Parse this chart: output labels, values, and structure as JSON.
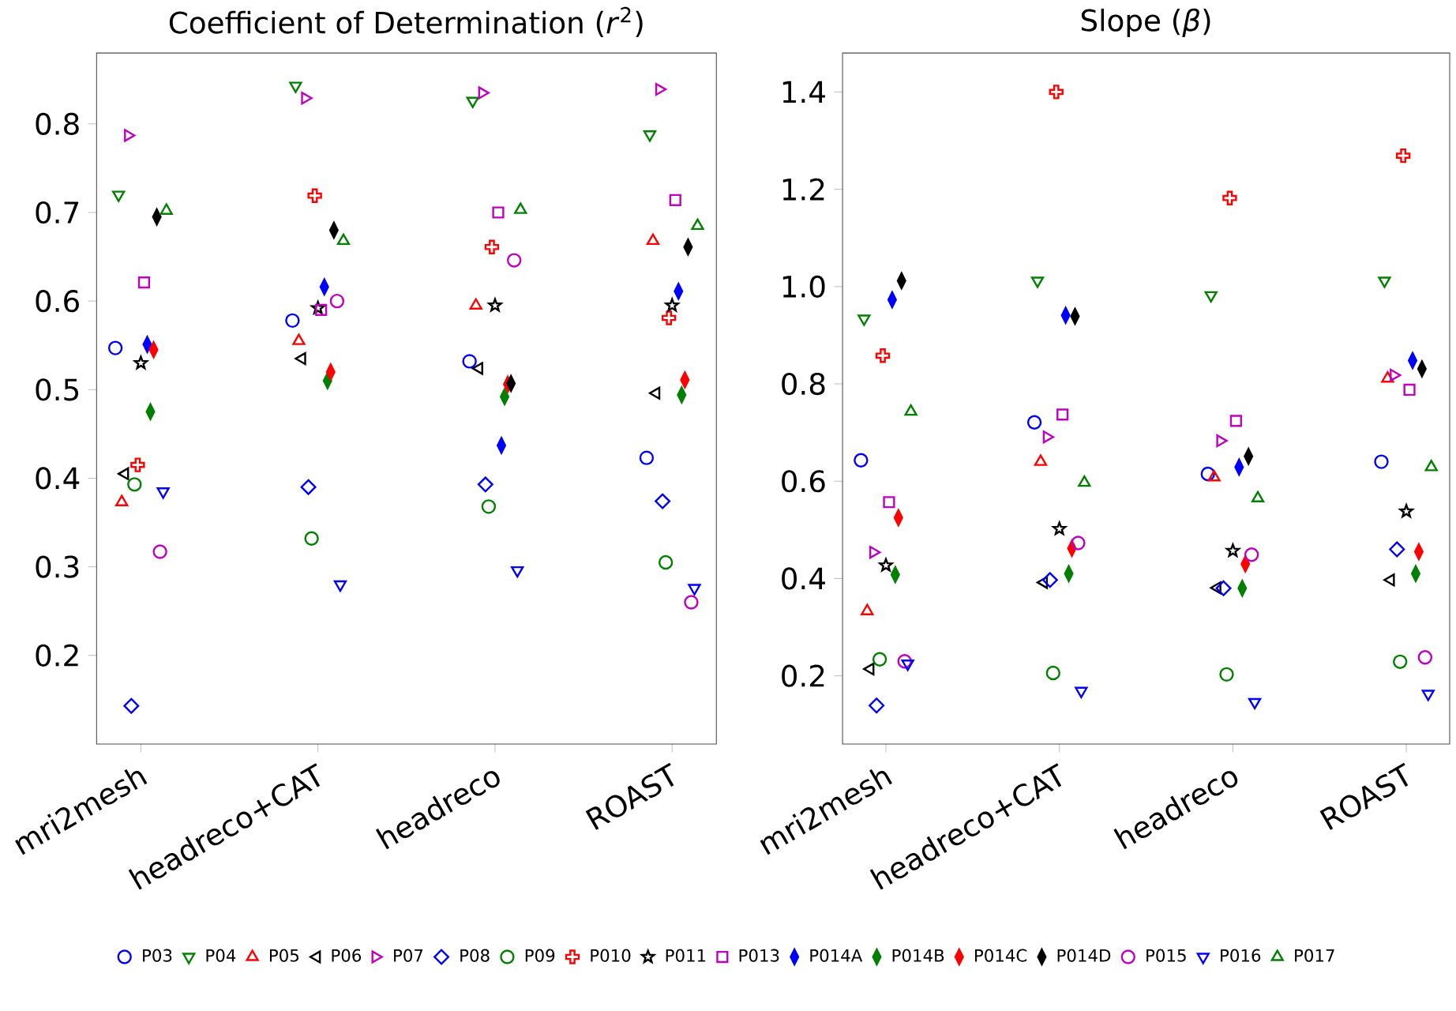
{
  "chart_data": [
    {
      "type": "scatter",
      "title": "Coefficient of Determination (*r*$^{2}$)",
      "categories": [
        "mri2mesh",
        "headreco+CAT",
        "headreco",
        "ROAST"
      ],
      "ylim": [
        0.1,
        0.88
      ],
      "yticks": [
        0.2,
        0.3,
        0.4,
        0.5,
        0.6,
        0.7,
        0.8
      ],
      "legend": "bottom",
      "series": [
        {
          "name": "P03",
          "color": "#0000ff",
          "marker": "circle",
          "values": [
            0.547,
            0.578,
            0.532,
            0.423
          ]
        },
        {
          "name": "P04",
          "color": "#008000",
          "marker": "triangle",
          "values": [
            0.72,
            0.843,
            0.826,
            0.788
          ]
        },
        {
          "name": "P05",
          "color": "#ff0000",
          "marker": "triangle",
          "values": [
            0.373,
            0.555,
            0.595,
            0.668
          ]
        },
        {
          "name": "P06",
          "color": "#000000",
          "marker": "triangle",
          "values": [
            0.405,
            0.535,
            0.524,
            0.496
          ]
        },
        {
          "name": "P07",
          "color": "#bf00bf",
          "marker": "triangle",
          "values": [
            0.787,
            0.829,
            0.835,
            0.839
          ]
        },
        {
          "name": "P08",
          "color": "#0000ff",
          "marker": "diamond",
          "values": [
            0.143,
            0.39,
            0.393,
            0.374
          ]
        },
        {
          "name": "P09",
          "color": "#008000",
          "marker": "circle",
          "values": [
            0.393,
            0.332,
            0.368,
            0.305
          ]
        },
        {
          "name": "P010",
          "color": "#ff0000",
          "marker": "cross",
          "values": [
            0.415,
            0.719,
            0.661,
            0.581
          ]
        },
        {
          "name": "P011",
          "color": "#000000",
          "marker": "star",
          "values": [
            0.53,
            0.592,
            0.595,
            0.595
          ]
        },
        {
          "name": "P013",
          "color": "#bf00bf",
          "marker": "square",
          "values": [
            0.621,
            0.59,
            0.7,
            0.714
          ]
        },
        {
          "name": "P014A",
          "color": "#0000ff",
          "marker": "diamond",
          "values": [
            0.551,
            0.616,
            0.437,
            0.611
          ]
        },
        {
          "name": "P014B",
          "color": "#008000",
          "marker": "diamond",
          "values": [
            0.475,
            0.51,
            0.492,
            0.494
          ]
        },
        {
          "name": "P014C",
          "color": "#ff0000",
          "marker": "diamond",
          "values": [
            0.545,
            0.52,
            0.506,
            0.511
          ]
        },
        {
          "name": "P014D",
          "color": "#000000",
          "marker": "diamond",
          "values": [
            0.695,
            0.68,
            0.507,
            0.661
          ]
        },
        {
          "name": "P015",
          "color": "#bf00bf",
          "marker": "circle",
          "values": [
            0.317,
            0.6,
            0.646,
            0.26
          ]
        },
        {
          "name": "P016",
          "color": "#0000ff",
          "marker": "triangle",
          "values": [
            0.385,
            0.28,
            0.296,
            0.276
          ]
        },
        {
          "name": "P017",
          "color": "#008000",
          "marker": "triangle",
          "values": [
            0.702,
            0.668,
            0.703,
            0.685
          ]
        }
      ]
    },
    {
      "type": "scatter",
      "title": "Slope (*β*)",
      "categories": [
        "mri2mesh",
        "headreco+CAT",
        "headreco",
        "ROAST"
      ],
      "ylim": [
        0.06,
        1.48
      ],
      "yticks": [
        0.2,
        0.4,
        0.6,
        0.8,
        {
          "value": 1,
          "label": "1.0"
        },
        1.2,
        1.4
      ],
      "series": [
        {
          "color": "#0000ff",
          "marker": "circle",
          "values": [
            0.643,
            0.721,
            0.615,
            0.64
          ]
        },
        {
          "color": "#008000",
          "marker": "triangle",
          "values": [
            0.934,
            1.012,
            0.982,
            1.012
          ]
        },
        {
          "color": "#ff0000",
          "marker": "triangle",
          "values": [
            0.333,
            0.64,
            0.608,
            0.811
          ]
        },
        {
          "color": "#000000",
          "marker": "triangle",
          "values": [
            0.214,
            0.392,
            0.381,
            0.397
          ]
        },
        {
          "color": "#bf00bf",
          "marker": "triangle",
          "values": [
            0.454,
            0.691,
            0.683,
            0.818
          ]
        },
        {
          "color": "#0000ff",
          "marker": "diamond",
          "values": [
            0.139,
            0.397,
            0.38,
            0.46
          ]
        },
        {
          "color": "#008000",
          "marker": "circle",
          "values": [
            0.234,
            0.206,
            0.203,
            0.229
          ]
        },
        {
          "color": "#ff0000",
          "marker": "cross",
          "values": [
            0.858,
            1.4,
            1.182,
            1.269
          ]
        },
        {
          "color": "#000000",
          "marker": "star",
          "values": [
            0.427,
            0.502,
            0.457,
            0.538
          ]
        },
        {
          "color": "#bf00bf",
          "marker": "square",
          "values": [
            0.557,
            0.737,
            0.724,
            0.788
          ]
        },
        {
          "color": "#0000ff",
          "marker": "diamond",
          "values": [
            0.973,
            0.941,
            0.629,
            0.848
          ]
        },
        {
          "color": "#008000",
          "marker": "diamond",
          "values": [
            0.408,
            0.41,
            0.38,
            0.41
          ]
        },
        {
          "color": "#ff0000",
          "marker": "diamond",
          "values": [
            0.525,
            0.462,
            0.43,
            0.455
          ]
        },
        {
          "color": "#000000",
          "marker": "diamond",
          "values": [
            1.012,
            0.939,
            0.651,
            0.831
          ]
        },
        {
          "color": "#bf00bf",
          "marker": "circle",
          "values": [
            0.23,
            0.473,
            0.449,
            0.238
          ]
        },
        {
          "color": "#0000ff",
          "marker": "triangle",
          "values": [
            0.225,
            0.169,
            0.146,
            0.163
          ]
        },
        {
          "color": "#008000",
          "marker": "triangle",
          "values": [
            0.743,
            0.597,
            0.565,
            0.629
          ]
        }
      ]
    }
  ]
}
